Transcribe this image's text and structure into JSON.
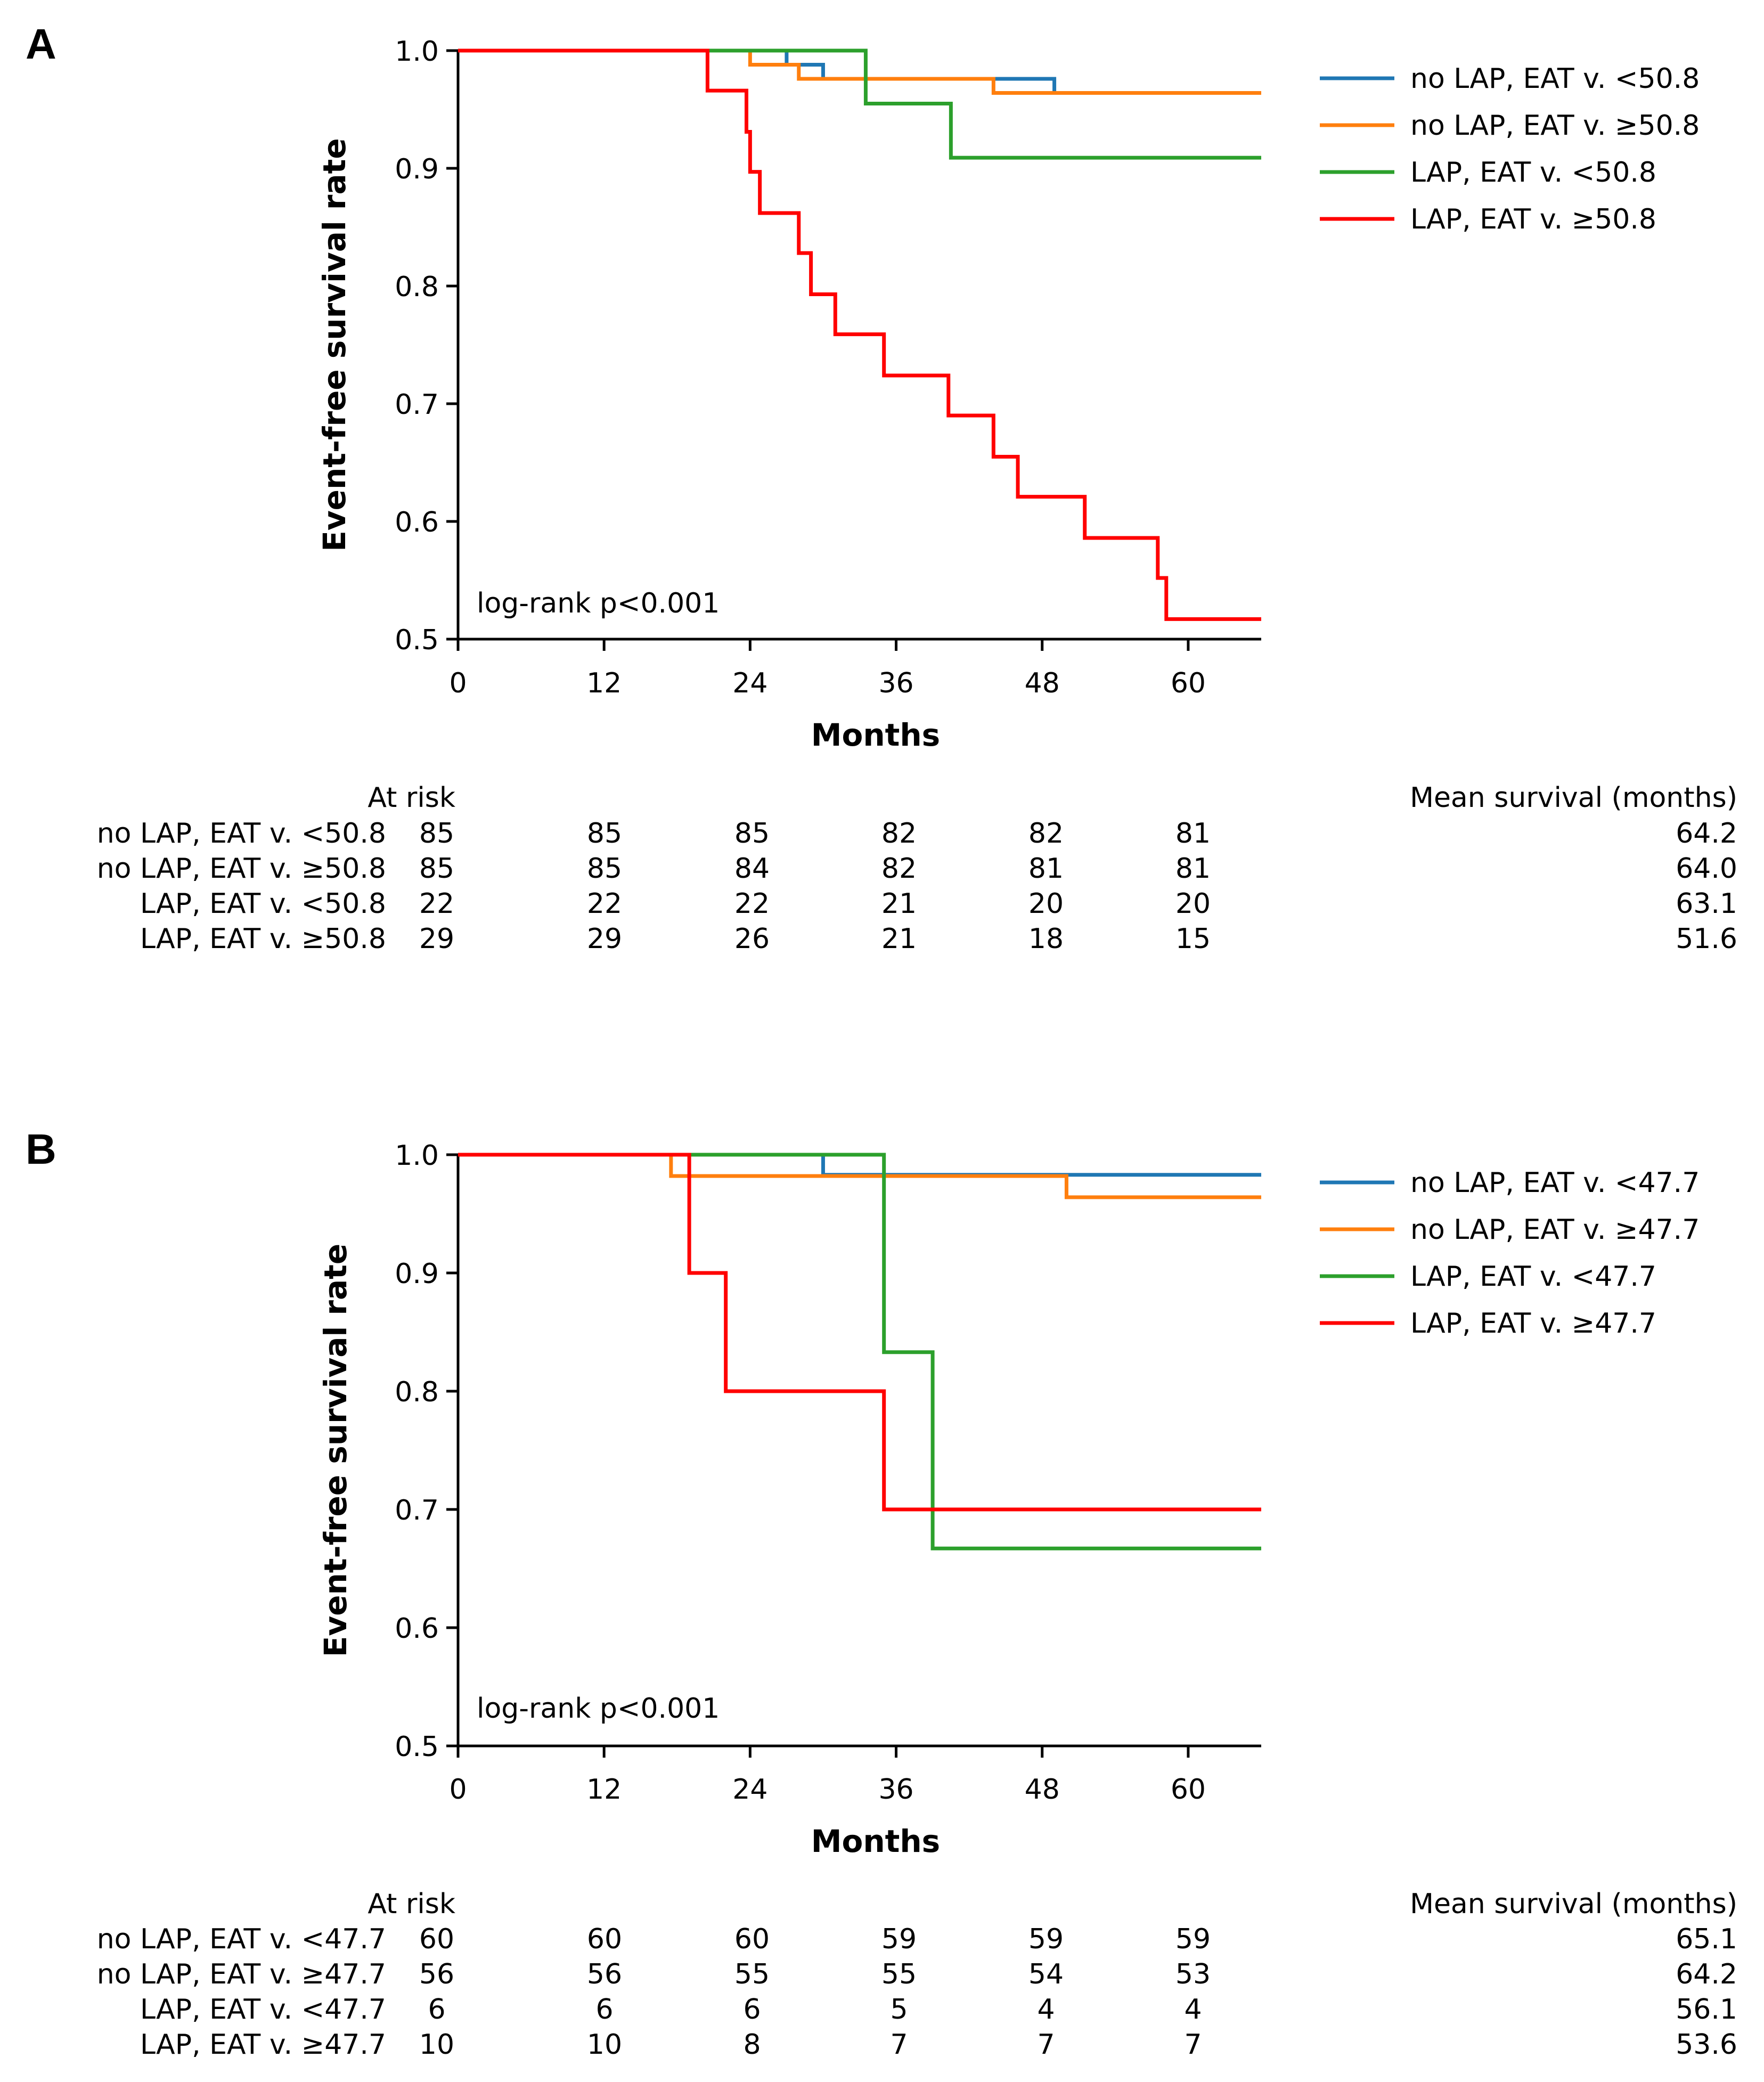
{
  "chart_data": [
    {
      "type": "line",
      "step": true,
      "panel_label": "A",
      "xlabel": "Months",
      "ylabel": "Event-free survival rate",
      "xlim": [
        0,
        66
      ],
      "ylim": [
        0.5,
        1.0
      ],
      "xticks": [
        "0",
        "12",
        "24",
        "36",
        "48",
        "60"
      ],
      "xtick_values": [
        0,
        12,
        24,
        36,
        48,
        60
      ],
      "yticks": [
        "0.5",
        "0.6",
        "0.7",
        "0.8",
        "0.9",
        "1.0"
      ],
      "ytick_values": [
        0.5,
        0.6,
        0.7,
        0.8,
        0.9,
        1.0
      ],
      "annotation": "log-rank p<0.001",
      "legend_position": "right",
      "series": [
        {
          "name": "no LAP, EAT v. <50.8",
          "color": "#1f77b4",
          "x": [
            0,
            27,
            30,
            44,
            49,
            66
          ],
          "y": [
            1.0,
            0.988,
            0.976,
            0.976,
            0.964,
            0.964
          ]
        },
        {
          "name": "no LAP, EAT v. ≥50.8",
          "color": "#ff7f0e",
          "x": [
            0,
            24,
            28,
            44,
            66
          ],
          "y": [
            1.0,
            0.988,
            0.976,
            0.964,
            0.964
          ]
        },
        {
          "name": "LAP, EAT v. <50.8",
          "color": "#2ca02c",
          "x": [
            0,
            33.5,
            40.5,
            66
          ],
          "y": [
            1.0,
            0.955,
            0.909,
            0.909
          ]
        },
        {
          "name": "LAP, EAT v. ≥50.8",
          "color": "#ff0000",
          "x": [
            0,
            20.5,
            23.7,
            24.0,
            24.3,
            24.8,
            28.0,
            29.0,
            31.0,
            35.0,
            40.3,
            44.0,
            46.0,
            51.5,
            57.5,
            58.2,
            66
          ],
          "y": [
            1.0,
            0.966,
            0.931,
            0.897,
            0.897,
            0.862,
            0.828,
            0.793,
            0.759,
            0.724,
            0.69,
            0.655,
            0.621,
            0.586,
            0.552,
            0.517,
            0.517
          ]
        }
      ],
      "at_risk_label": "At risk",
      "mean_survival_label": "Mean survival (months)",
      "table": [
        {
          "label": "no LAP, EAT v. <50.8",
          "counts": [
            "85",
            "85",
            "85",
            "82",
            "82",
            "81"
          ],
          "mean": "64.2"
        },
        {
          "label": "no LAP, EAT v. ≥50.8",
          "counts": [
            "85",
            "85",
            "84",
            "82",
            "81",
            "81"
          ],
          "mean": "64.0"
        },
        {
          "label": "LAP, EAT v. <50.8",
          "counts": [
            "22",
            "22",
            "22",
            "21",
            "20",
            "20"
          ],
          "mean": "63.1"
        },
        {
          "label": "LAP, EAT v. ≥50.8",
          "counts": [
            "29",
            "29",
            "26",
            "21",
            "18",
            "15"
          ],
          "mean": "51.6"
        }
      ]
    },
    {
      "type": "line",
      "step": true,
      "panel_label": "B",
      "xlabel": "Months",
      "ylabel": "Event-free survival rate",
      "xlim": [
        0,
        66
      ],
      "ylim": [
        0.5,
        1.0
      ],
      "xticks": [
        "0",
        "12",
        "24",
        "36",
        "48",
        "60"
      ],
      "xtick_values": [
        0,
        12,
        24,
        36,
        48,
        60
      ],
      "yticks": [
        "0.5",
        "0.6",
        "0.7",
        "0.8",
        "0.9",
        "1.0"
      ],
      "ytick_values": [
        0.5,
        0.6,
        0.7,
        0.8,
        0.9,
        1.0
      ],
      "annotation": "log-rank p<0.001",
      "legend_position": "right",
      "series": [
        {
          "name": "no LAP, EAT v. <47.7",
          "color": "#1f77b4",
          "x": [
            0,
            30,
            66
          ],
          "y": [
            1.0,
            0.983,
            0.983
          ]
        },
        {
          "name": "no LAP, EAT v. ≥47.7",
          "color": "#ff7f0e",
          "x": [
            0,
            17.5,
            50,
            66
          ],
          "y": [
            1.0,
            0.982,
            0.964,
            0.964
          ]
        },
        {
          "name": "LAP, EAT v. <47.7",
          "color": "#2ca02c",
          "x": [
            0,
            35,
            39,
            66
          ],
          "y": [
            1.0,
            0.833,
            0.667,
            0.667
          ]
        },
        {
          "name": "LAP, EAT v. ≥47.7",
          "color": "#ff0000",
          "x": [
            0,
            19,
            22,
            35,
            66
          ],
          "y": [
            1.0,
            0.9,
            0.8,
            0.7,
            0.7
          ]
        }
      ],
      "at_risk_label": "At risk",
      "mean_survival_label": "Mean survival (months)",
      "table": [
        {
          "label": "no LAP, EAT v. <47.7",
          "counts": [
            "60",
            "60",
            "60",
            "59",
            "59",
            "59"
          ],
          "mean": "65.1"
        },
        {
          "label": "no LAP, EAT v. ≥47.7",
          "counts": [
            "56",
            "56",
            "55",
            "55",
            "54",
            "53"
          ],
          "mean": "64.2"
        },
        {
          "label": "LAP, EAT v. <47.7",
          "counts": [
            "6",
            "6",
            "6",
            "5",
            "4",
            "4"
          ],
          "mean": "56.1"
        },
        {
          "label": "LAP, EAT v. ≥47.7",
          "counts": [
            "10",
            "10",
            "8",
            "7",
            "7",
            "7"
          ],
          "mean": "53.6"
        }
      ]
    }
  ]
}
